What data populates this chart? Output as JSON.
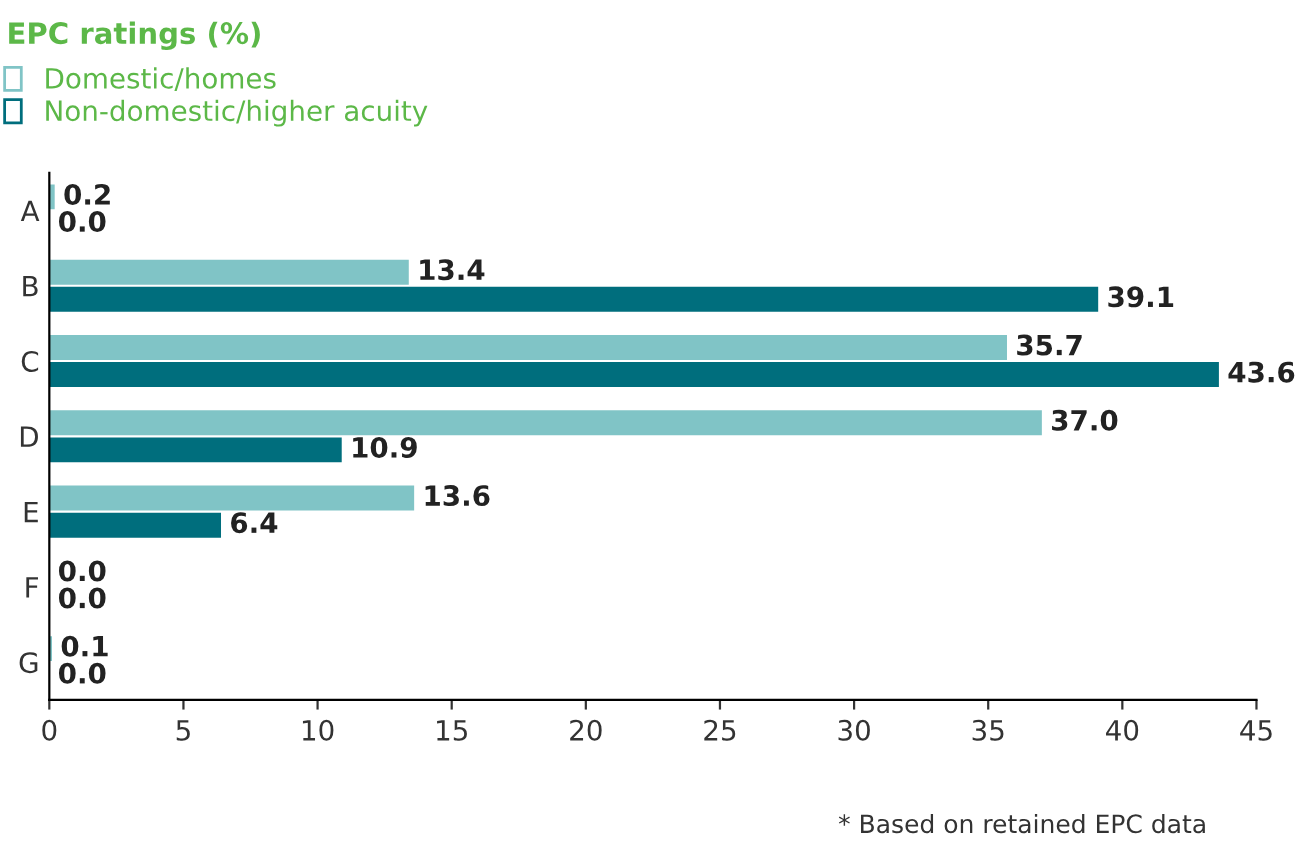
{
  "chart_data": {
    "type": "bar",
    "orientation": "horizontal",
    "title": "EPC ratings (%)",
    "categories": [
      "A",
      "B",
      "C",
      "D",
      "E",
      "F",
      "G"
    ],
    "series": [
      {
        "name": "Domestic/homes",
        "color": "#80c4c6",
        "values": [
          0.2,
          13.4,
          35.7,
          37.0,
          13.6,
          0.0,
          0.1
        ],
        "value_labels": [
          "0.2",
          "13.4",
          "35.7",
          "37.0",
          "13.6",
          "0.0",
          "0.1"
        ]
      },
      {
        "name": "Non-domestic/higher acuity",
        "color": "#006e7d",
        "values": [
          0.0,
          39.1,
          43.6,
          10.9,
          6.4,
          0.0,
          0.0
        ],
        "value_labels": [
          "0.0",
          "39.1",
          "43.6",
          "10.9",
          "6.4",
          "0.0",
          "0.0"
        ]
      }
    ],
    "xlim": [
      0,
      45
    ],
    "xticks": [
      0,
      5,
      10,
      15,
      20,
      25,
      30,
      35,
      40,
      45
    ],
    "grid": false,
    "legend": "top left",
    "annotations": [
      "* Based on retained EPC data"
    ]
  }
}
